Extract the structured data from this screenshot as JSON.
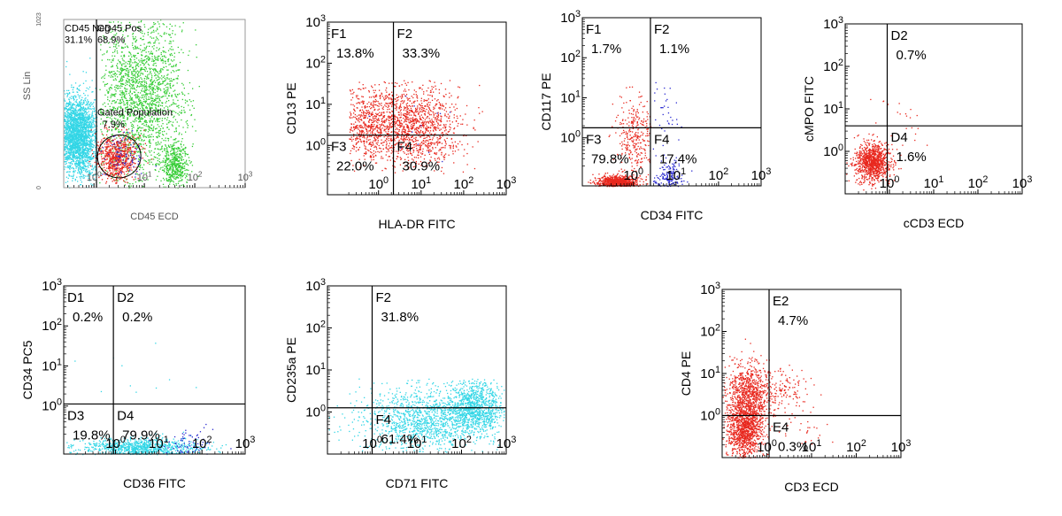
{
  "chart_data": [
    {
      "id": "p1",
      "type": "scatter",
      "style": "small",
      "title": "",
      "xlabel": "CD45 ECD",
      "ylabel": "SS Lin",
      "x_scale": "log",
      "x_ticks": [
        "10^0",
        "10^1",
        "10^2",
        "10^3"
      ],
      "y_scale": "linear",
      "y_ticks": [
        {
          "label": "1023",
          "value": 1023
        },
        {
          "label": "0",
          "value": 0
        }
      ],
      "ylim": [
        0,
        1023
      ],
      "xlim_log": [
        -0.6,
        3.0
      ],
      "x_gate": 0.05,
      "y_gate": null,
      "labels": [
        {
          "text": "CD45 Neg",
          "x": -0.6,
          "y": 950
        },
        {
          "text": "31.1%",
          "x": -0.6,
          "y": 880
        },
        {
          "text": "CD45 Pos",
          "x": 0.05,
          "y": 950
        },
        {
          "text": "68.9%",
          "x": 0.05,
          "y": 880
        },
        {
          "text": "Gated Population",
          "x": 0.05,
          "y": 440
        },
        {
          "text": "7.9%",
          "x": 0.15,
          "y": 365
        }
      ],
      "gate_ellipse": {
        "cx": 0.5,
        "cy": 190,
        "rx": 0.43,
        "ry": 130
      },
      "colors": {
        "cyan": "#33d6e6",
        "green": "#33cc33",
        "red": "#e8281e",
        "blue": "#2a2ad0"
      },
      "populations": [
        {
          "color": "cyan",
          "n": 2300,
          "cx": -0.35,
          "cy": 320,
          "sx": 0.22,
          "sy": 120,
          "xmin": -0.6,
          "xmax": 0.05
        },
        {
          "color": "green",
          "n": 1900,
          "cx": 0.9,
          "cy": 560,
          "sx": 0.45,
          "sy": 250,
          "xmin": 0.1,
          "xmax": 2.1
        },
        {
          "color": "green",
          "n": 450,
          "cx": 1.6,
          "cy": 140,
          "sx": 0.13,
          "sy": 70
        },
        {
          "color": "red",
          "n": 700,
          "cx": 0.45,
          "cy": 190,
          "sx": 0.2,
          "sy": 70
        },
        {
          "color": "blue",
          "n": 90,
          "cx": 0.6,
          "cy": 200,
          "sx": 0.2,
          "sy": 65
        }
      ]
    },
    {
      "id": "p2",
      "type": "scatter",
      "style": "large",
      "title": "",
      "xlabel": "HLA-DR FITC",
      "ylabel": "CD13 PE",
      "x_scale": "log",
      "y_scale": "log",
      "x_ticks": [
        "10^0",
        "10^1",
        "10^2",
        "10^3"
      ],
      "y_ticks": [
        "10^0",
        "10^1",
        "10^2",
        "10^3"
      ],
      "xlim_log": [
        -1.2,
        3.0
      ],
      "ylim_log": [
        -1.2,
        3.0
      ],
      "x_gate": 0.35,
      "y_gate": 0.25,
      "quadrants": [
        {
          "name": "F1",
          "value": "13.8%",
          "pos": "tl"
        },
        {
          "name": "F2",
          "value": "33.3%",
          "pos": "tr"
        },
        {
          "name": "F3",
          "value": "22.0%",
          "pos": "bl"
        },
        {
          "name": "F4",
          "value": "30.9%",
          "pos": "br"
        }
      ],
      "colors": {
        "red": "#e8281e",
        "blue": "#2a2ad0"
      },
      "populations": [
        {
          "color": "red",
          "n": 1300,
          "cx": 0.8,
          "cy": 0.5,
          "sx": 0.55,
          "sy": 0.5,
          "xmin": -0.6,
          "xmax": 2.5,
          "ymin": -0.7,
          "ymax": 1.6
        },
        {
          "color": "red",
          "n": 450,
          "cx": -0.3,
          "cy": 0.5,
          "sx": 0.3,
          "sy": 0.45,
          "xmin": -0.7,
          "ymin": -0.7,
          "ymax": 1.6
        },
        {
          "color": "blue",
          "n": 12,
          "cx": 0.8,
          "cy": 0.3,
          "sx": 0.6,
          "sy": 0.5
        }
      ]
    },
    {
      "id": "p3",
      "type": "scatter",
      "style": "large",
      "title": "",
      "xlabel": "CD34 FITC",
      "ylabel": "CD117 PE",
      "x_scale": "log",
      "y_scale": "log",
      "x_ticks": [
        "10^0",
        "10^1",
        "10^2",
        "10^3"
      ],
      "y_ticks": [
        "10^0",
        "10^1",
        "10^2",
        "10^3"
      ],
      "xlim_log": [
        -1.2,
        3.0
      ],
      "ylim_log": [
        -1.2,
        3.0
      ],
      "x_gate": 0.4,
      "y_gate": 0.25,
      "quadrants": [
        {
          "name": "F1",
          "value": "1.7%",
          "pos": "tl"
        },
        {
          "name": "F2",
          "value": "1.1%",
          "pos": "tr"
        },
        {
          "name": "F3",
          "value": "79.8%",
          "pos": "bl"
        },
        {
          "name": "F4",
          "value": "17.4%",
          "pos": "br"
        }
      ],
      "colors": {
        "red": "#e8281e",
        "blue": "#2a2ad0"
      },
      "populations": [
        {
          "color": "red",
          "n": 800,
          "cx": -0.4,
          "cy": -1.1,
          "sx": 0.22,
          "sy": 0.08,
          "ymin": -1.2
        },
        {
          "color": "red",
          "n": 300,
          "cx": 0.05,
          "cy": 0.0,
          "sx": 0.25,
          "sy": 0.55,
          "xmin": -0.6,
          "xmax": 0.4,
          "ymin": -1.2,
          "ymax": 1.3
        },
        {
          "color": "blue",
          "n": 150,
          "cx": 0.8,
          "cy": -1.0,
          "sx": 0.2,
          "sy": 0.2,
          "xmin": 0.45,
          "ymin": -1.2
        },
        {
          "color": "blue",
          "n": 35,
          "cx": 0.7,
          "cy": 0.7,
          "sx": 0.2,
          "sy": 0.6,
          "xmin": 0.42,
          "ymax": 1.4
        }
      ]
    },
    {
      "id": "p4",
      "type": "scatter",
      "style": "large",
      "title": "",
      "xlabel": "cCD3 ECD",
      "ylabel": "cMPO FITC",
      "x_scale": "log",
      "y_scale": "log",
      "x_ticks": [
        "10^0",
        "10^1",
        "10^2",
        "10^3"
      ],
      "y_ticks": [
        "10^0",
        "10^1",
        "10^2",
        "10^3"
      ],
      "xlim_log": [
        -1.0,
        3.0
      ],
      "ylim_log": [
        -1.0,
        3.0
      ],
      "x_gate": -0.05,
      "y_gate": 0.6,
      "quadrants": [
        {
          "name": "D2",
          "value": "0.7%",
          "pos": "tr"
        },
        {
          "name": "D4",
          "value": "1.6%",
          "pos": "br"
        }
      ],
      "colors": {
        "red": "#e8281e"
      },
      "populations": [
        {
          "color": "red",
          "n": 1000,
          "cx": -0.4,
          "cy": -0.25,
          "sx": 0.2,
          "sy": 0.22,
          "xmin": -1.0,
          "ymin": -1.0,
          "ymax": 0.8
        },
        {
          "color": "red",
          "n": 25,
          "cx": 0.2,
          "cy": 0.7,
          "sx": 0.35,
          "sy": 0.4,
          "xmin": -0.8,
          "xmax": 1.0
        }
      ]
    },
    {
      "id": "p5",
      "type": "scatter",
      "style": "large",
      "title": "",
      "xlabel": "CD36 FITC",
      "ylabel": "CD34 PC5",
      "x_scale": "log",
      "y_scale": "log",
      "x_ticks": [
        "10^0",
        "10^1",
        "10^2",
        "10^3"
      ],
      "y_ticks": [
        "10^0",
        "10^1",
        "10^2",
        "10^3"
      ],
      "xlim_log": [
        -1.2,
        3.0
      ],
      "ylim_log": [
        -1.2,
        3.0
      ],
      "x_gate": -0.05,
      "y_gate": 0.05,
      "quadrants": [
        {
          "name": "D1",
          "value": "0.2%",
          "pos": "tl"
        },
        {
          "name": "D2",
          "value": "0.2%",
          "pos": "tr"
        },
        {
          "name": "D3",
          "value": "19.8%",
          "pos": "bl"
        },
        {
          "name": "D4",
          "value": "79.9%",
          "pos": "br"
        }
      ],
      "colors": {
        "cyan": "#33d6e6",
        "blue": "#2a2ad0"
      },
      "populations": [
        {
          "color": "cyan",
          "n": 900,
          "cx": 0.6,
          "cy": -1.05,
          "sx": 0.7,
          "sy": 0.12,
          "xmin": -1.2,
          "xmax": 2.6,
          "ymin": -1.2
        },
        {
          "color": "blue",
          "n": 70,
          "cx": 1.7,
          "cy": -0.95,
          "sx": 0.35,
          "sy": 0.2,
          "xmin": 0.5,
          "ymin": -1.2
        },
        {
          "color": "cyan",
          "n": 10,
          "cx": 0.5,
          "cy": 0.7,
          "sx": 0.8,
          "sy": 0.4
        }
      ]
    },
    {
      "id": "p6",
      "type": "scatter",
      "style": "large",
      "title": "",
      "xlabel": "CD71 FITC",
      "ylabel": "CD235a PE",
      "x_scale": "log",
      "y_scale": "log",
      "x_ticks": [
        "10^0",
        "10^1",
        "10^2",
        "10^3"
      ],
      "y_ticks": [
        "10^0",
        "10^1",
        "10^2",
        "10^3"
      ],
      "xlim_log": [
        -1.0,
        3.0
      ],
      "ylim_log": [
        -1.0,
        3.0
      ],
      "x_gate": 0.0,
      "y_gate": 0.1,
      "quadrants": [
        {
          "name": "F2",
          "value": "31.8%",
          "pos": "tr"
        },
        {
          "name": "F4",
          "value": "61.4%",
          "pos": "br"
        }
      ],
      "colors": {
        "cyan": "#33d6e6"
      },
      "populations": [
        {
          "color": "cyan",
          "n": 1300,
          "cx": 1.2,
          "cy": -0.2,
          "sx": 0.75,
          "sy": 0.4,
          "xmin": -1.0,
          "xmax": 2.95,
          "ymin": -0.95,
          "ymax": 0.8
        },
        {
          "color": "cyan",
          "n": 900,
          "cx": 2.3,
          "cy": 0.15,
          "sx": 0.3,
          "sy": 0.3,
          "xmax": 2.95,
          "ymax": 0.8
        }
      ]
    },
    {
      "id": "p7",
      "type": "scatter",
      "style": "large",
      "title": "",
      "xlabel": "CD3 ECD",
      "ylabel": "CD4 PE",
      "x_scale": "log",
      "y_scale": "log",
      "x_ticks": [
        "10^0",
        "10^1",
        "10^2",
        "10^3"
      ],
      "y_ticks": [
        "10^0",
        "10^1",
        "10^2",
        "10^3"
      ],
      "xlim_log": [
        -1.0,
        3.0
      ],
      "ylim_log": [
        -1.0,
        3.0
      ],
      "x_gate": 0.05,
      "y_gate": 0.0,
      "quadrants": [
        {
          "name": "E2",
          "value": "4.7%",
          "pos": "tr"
        },
        {
          "name": "E4",
          "value": "0.3%",
          "pos": "br"
        }
      ],
      "colors": {
        "red": "#e8281e"
      },
      "populations": [
        {
          "color": "red",
          "n": 1100,
          "cx": -0.5,
          "cy": -0.3,
          "sx": 0.2,
          "sy": 0.35,
          "xmin": -1.0,
          "xmax": 0.3,
          "ymin": -1.0
        },
        {
          "color": "red",
          "n": 800,
          "cx": -0.4,
          "cy": 0.55,
          "sx": 0.25,
          "sy": 0.35,
          "xmin": -1.0,
          "xmax": 0.4
        },
        {
          "color": "red",
          "n": 110,
          "cx": 0.4,
          "cy": 0.6,
          "sx": 0.3,
          "sy": 0.25,
          "xmin": 0.06
        },
        {
          "color": "red",
          "n": 25,
          "cx": 0.7,
          "cy": -0.2,
          "sx": 0.5,
          "sy": 0.35,
          "xmin": 0.06,
          "ymax": -0.02
        }
      ]
    }
  ]
}
